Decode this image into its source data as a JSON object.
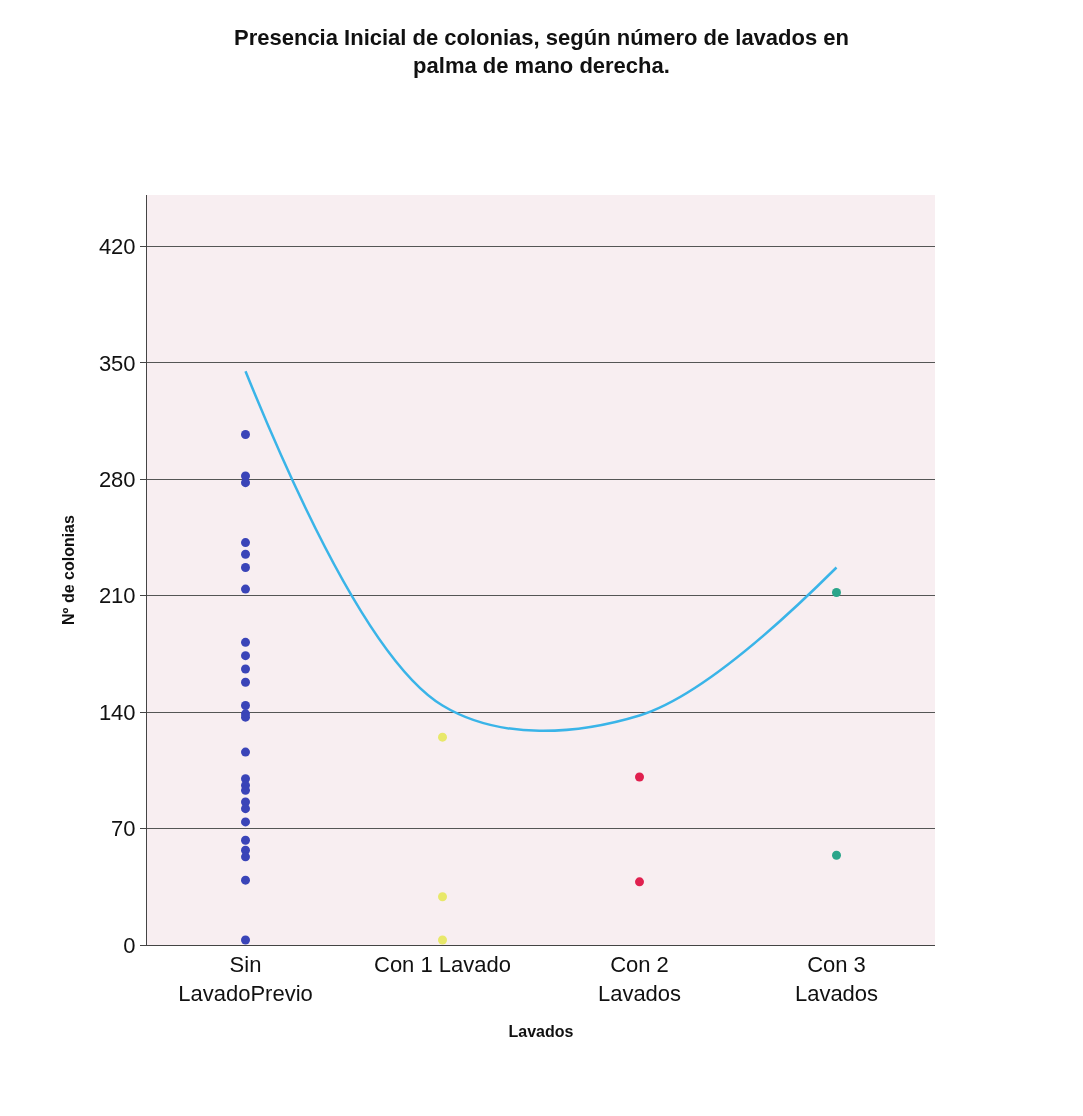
{
  "chart_data": {
    "type": "scatter",
    "title": "Presencia Inicial de colonias, según número de lavados en palma de mano derecha.",
    "xlabel": "Lavados",
    "ylabel": "Nº de colonias",
    "categories": [
      "Sin LavadoPrevio",
      "Con 1 Lavado",
      "Con 2 Lavados",
      "Con 3 Lavados"
    ],
    "ylim": [
      0,
      451
    ],
    "yticks": [
      0,
      70,
      140,
      210,
      280,
      350,
      420
    ],
    "grid": "y",
    "marker": "circle",
    "series": [
      {
        "color": "#3a44b8",
        "x": [
          "Sin LavadoPrevio",
          "Sin LavadoPrevio",
          "Sin LavadoPrevio",
          "Sin LavadoPrevio",
          "Sin LavadoPrevio",
          "Sin LavadoPrevio",
          "Sin LavadoPrevio",
          "Sin LavadoPrevio",
          "Sin LavadoPrevio",
          "Sin LavadoPrevio",
          "Sin LavadoPrevio",
          "Sin LavadoPrevio",
          "Sin LavadoPrevio",
          "Sin LavadoPrevio",
          "Sin LavadoPrevio",
          "Sin LavadoPrevio",
          "Sin LavadoPrevio",
          "Sin LavadoPrevio",
          "Sin LavadoPrevio",
          "Sin LavadoPrevio",
          "Sin LavadoPrevio",
          "Sin LavadoPrevio",
          "Sin LavadoPrevio",
          "Sin LavadoPrevio",
          "Sin LavadoPrevio",
          "Sin LavadoPrevio"
        ],
        "values": [
          307,
          282,
          278,
          242,
          235,
          227,
          214,
          182,
          174,
          166,
          158,
          144,
          139,
          137,
          116,
          100,
          96,
          93,
          86,
          82,
          74,
          63,
          57,
          53,
          39,
          3
        ]
      },
      {
        "color": "#e8e86a",
        "x": [
          "Con 1 Lavado",
          "Con 1 Lavado",
          "Con 1 Lavado"
        ],
        "values": [
          125,
          29,
          3
        ]
      },
      {
        "color": "#e0204f",
        "x": [
          "Con 2 Lavados",
          "Con 2 Lavados"
        ],
        "values": [
          101,
          38
        ]
      },
      {
        "color": "#2aa58a",
        "x": [
          "Con 3 Lavados",
          "Con 3 Lavados"
        ],
        "values": [
          212,
          54
        ]
      },
      {
        "type": "line",
        "color": "#3ab4e8",
        "marker": "none",
        "values": [
          345,
          144,
          138,
          227
        ]
      }
    ]
  }
}
